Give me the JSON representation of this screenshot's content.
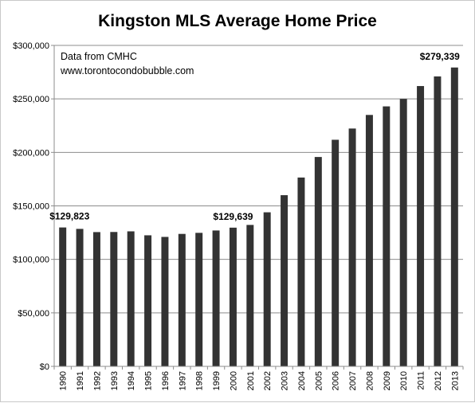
{
  "chart_data": {
    "type": "bar",
    "title": "Kingston MLS Average Home Price",
    "xlabel": "",
    "ylabel": "",
    "categories": [
      "1990",
      "1991",
      "1992",
      "1993",
      "1994",
      "1995",
      "1996",
      "1997",
      "1998",
      "1999",
      "2000",
      "2001",
      "2002",
      "2003",
      "2004",
      "2005",
      "2006",
      "2007",
      "2008",
      "2009",
      "2010",
      "2011",
      "2012",
      "2013"
    ],
    "values": [
      129823,
      128500,
      125500,
      125600,
      126200,
      122500,
      121000,
      123800,
      124800,
      127000,
      129639,
      132200,
      144000,
      160000,
      176500,
      195700,
      211800,
      222300,
      235000,
      243000,
      250000,
      262000,
      271000,
      279339
    ],
    "ylim": [
      0,
      300000
    ],
    "y_ticks": [
      "$0",
      "$50,000",
      "$100,000",
      "$150,000",
      "$200,000",
      "$250,000",
      "$300,000"
    ],
    "y_tick_values": [
      0,
      50000,
      100000,
      150000,
      200000,
      250000,
      300000
    ],
    "grid": true,
    "bar_color": "#333333",
    "annotations": [
      "Data from CMHC",
      "www.torontocondobubble.com"
    ],
    "data_labels": [
      {
        "category": "1990",
        "text": "$129,823"
      },
      {
        "category": "2000",
        "text": "$129,639"
      },
      {
        "category": "2013",
        "text": "$279,339"
      }
    ]
  }
}
